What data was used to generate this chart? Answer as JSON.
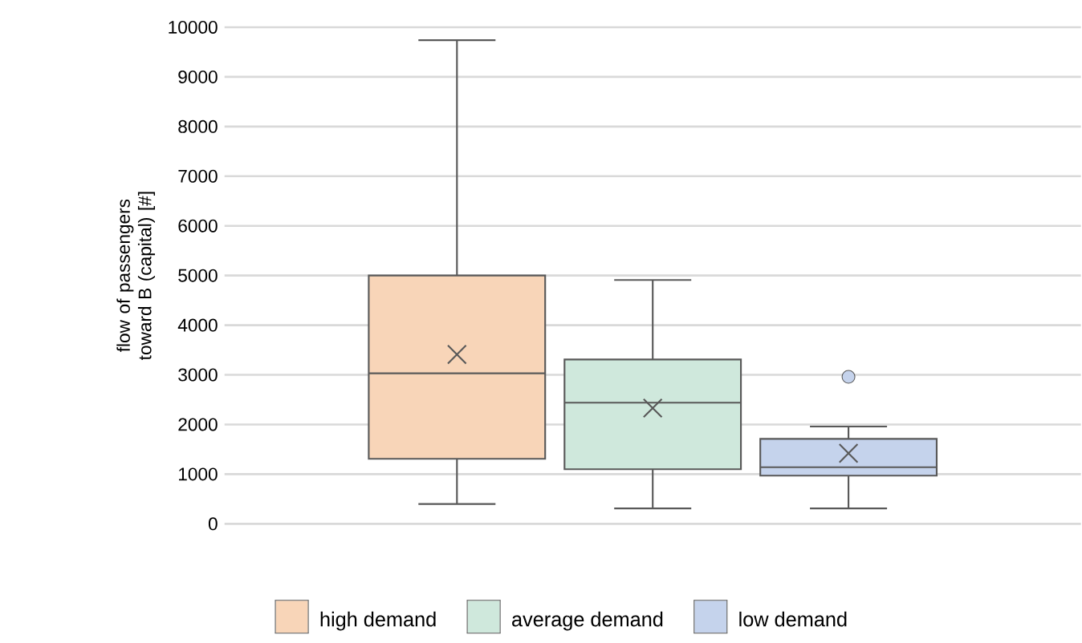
{
  "chart_data": {
    "type": "box",
    "ylabel": "flow of passengers toward B (capital) [#]",
    "categories": [
      null
    ],
    "series": [
      {
        "name": "high demand",
        "color": "#f8d5b8",
        "boxes": [
          {
            "low": 400,
            "q1": 1310,
            "median": 3030,
            "q3": 5000,
            "high": 9740,
            "mean": 3410
          }
        ]
      },
      {
        "name": "average demand",
        "color": "#cfe8dc",
        "boxes": [
          {
            "low": 310,
            "q1": 1100,
            "median": 2440,
            "q3": 3310,
            "high": 4910,
            "mean": 2330
          }
        ]
      },
      {
        "name": "low demand",
        "color": "#c5d3ec",
        "boxes": [
          {
            "low": 310,
            "q1": 970,
            "median": 1140,
            "q3": 1710,
            "high": 1960,
            "mean": 1420,
            "outliers": [
              2960
            ]
          }
        ]
      }
    ],
    "ylim": [
      0,
      10000
    ],
    "yticks": [
      0,
      1000,
      2000,
      3000,
      4000,
      5000,
      6000,
      7000,
      8000,
      9000,
      10000
    ],
    "grid": "y",
    "legend": "bottom"
  }
}
